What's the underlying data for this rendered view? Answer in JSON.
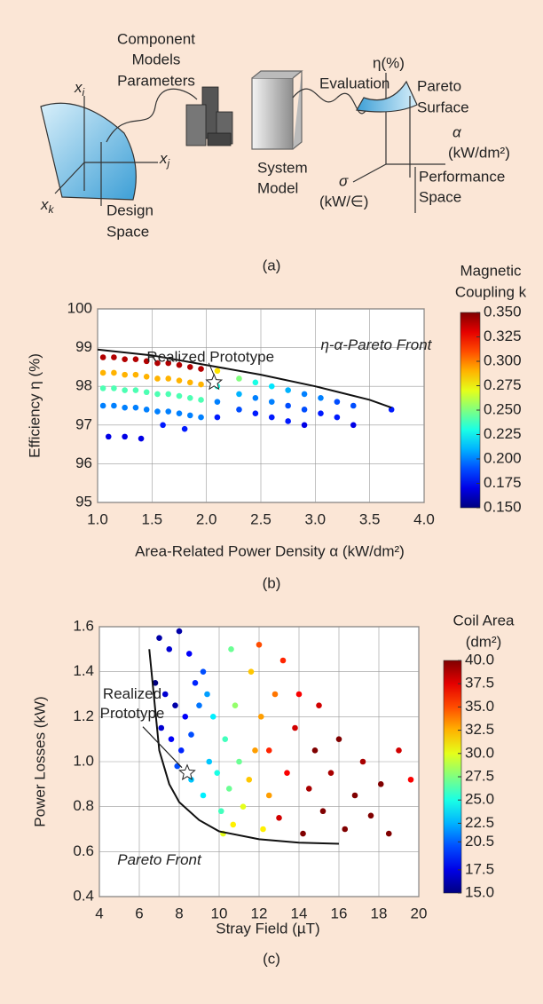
{
  "diagram": {
    "component_models": [
      "Component",
      "Models"
    ],
    "parameters": "Parameters",
    "evaluation": "Evaluation",
    "system_model": [
      "System",
      "Model"
    ],
    "design_space": [
      "Design",
      "Space"
    ],
    "axis_xi": {
      "var": "x",
      "sub": "i"
    },
    "axis_xj": {
      "var": "x",
      "sub": "j"
    },
    "axis_xk": {
      "var": "x",
      "sub": "k"
    },
    "eta": "η(%)",
    "pareto_surface": [
      "Pareto",
      "Surface"
    ],
    "alpha": [
      "α",
      "(kW/dm²)"
    ],
    "sigma": [
      "σ",
      "(kW/∈)"
    ],
    "performance_space": [
      "Performance",
      "Space"
    ],
    "panel": "(a)"
  },
  "chart_data": [
    {
      "type": "scatter",
      "panel": "(b)",
      "xlabel": "Area-Related Power Density α (kW/dm²)",
      "ylabel": "Efficiency η (%)",
      "xlim": [
        1,
        4
      ],
      "ylim": [
        95,
        100
      ],
      "xticks": [
        {
          "value": 1,
          "label": "1.0"
        },
        1.5,
        {
          "value": 2,
          "label": "2.0"
        },
        2.5,
        {
          "value": 3,
          "label": "3.0"
        },
        3.5,
        {
          "value": 4,
          "label": "4.0"
        }
      ],
      "yticks": [
        95,
        96,
        97,
        98,
        99,
        100
      ],
      "grid": true,
      "colorbar": {
        "label": [
          "Magnetic",
          "Coupling k"
        ],
        "lim": [
          0.15,
          0.35
        ],
        "colormap": "jet",
        "ticks": [
          {
            "value": 0.35,
            "label": "0.350"
          },
          0.325,
          {
            "value": 0.3,
            "label": "0.300"
          },
          0.275,
          {
            "value": 0.25,
            "label": "0.250"
          },
          0.225,
          {
            "value": 0.2,
            "label": "0.200"
          },
          0.175,
          {
            "value": 0.15,
            "label": "0.150"
          }
        ]
      },
      "series": [
        {
          "x": [
            1.05,
            1.05,
            1.05,
            1.05,
            1.15,
            1.15,
            1.15,
            1.15,
            1.25,
            1.25,
            1.25,
            1.25,
            1.35,
            1.35,
            1.35,
            1.35,
            1.45,
            1.45,
            1.45,
            1.45,
            1.55,
            1.55,
            1.55,
            1.55,
            1.65,
            1.65,
            1.65,
            1.65,
            1.75,
            1.75,
            1.75,
            1.75,
            1.85,
            1.85,
            1.85,
            1.85,
            1.95,
            1.95,
            1.95,
            1.95,
            1.1,
            1.25,
            1.4,
            1.6,
            1.8,
            2.1,
            2.1,
            2.1,
            2.1,
            2.3,
            2.3,
            2.3,
            2.45,
            2.45,
            2.45,
            2.6,
            2.6,
            2.6,
            2.75,
            2.75,
            2.75,
            2.9,
            2.9,
            2.9,
            3.05,
            3.05,
            3.2,
            3.2,
            3.35,
            3.35,
            3.7
          ],
          "values": [
            98.75,
            98.35,
            97.95,
            97.5,
            98.75,
            98.35,
            97.95,
            97.5,
            98.7,
            98.3,
            97.9,
            97.45,
            98.7,
            98.3,
            97.9,
            97.45,
            98.65,
            98.25,
            97.85,
            97.4,
            98.6,
            98.2,
            97.8,
            97.35,
            98.6,
            98.2,
            97.8,
            97.35,
            98.55,
            98.15,
            97.75,
            97.3,
            98.5,
            98.1,
            97.7,
            97.25,
            98.45,
            98.05,
            97.65,
            97.2,
            96.7,
            96.7,
            96.65,
            97.0,
            96.9,
            98.4,
            98.0,
            97.6,
            97.2,
            98.2,
            97.8,
            97.4,
            98.1,
            97.7,
            97.3,
            98.0,
            97.6,
            97.2,
            97.9,
            97.5,
            97.1,
            97.8,
            97.4,
            97.0,
            97.7,
            97.3,
            97.6,
            97.2,
            97.5,
            97.0,
            97.4
          ],
          "c": [
            0.34,
            0.29,
            0.24,
            0.2,
            0.34,
            0.29,
            0.24,
            0.2,
            0.34,
            0.29,
            0.24,
            0.2,
            0.34,
            0.29,
            0.24,
            0.2,
            0.34,
            0.29,
            0.24,
            0.2,
            0.34,
            0.29,
            0.24,
            0.2,
            0.34,
            0.29,
            0.24,
            0.2,
            0.34,
            0.29,
            0.24,
            0.2,
            0.34,
            0.29,
            0.24,
            0.2,
            0.34,
            0.29,
            0.24,
            0.2,
            0.17,
            0.17,
            0.17,
            0.18,
            0.18,
            0.28,
            0.23,
            0.2,
            0.18,
            0.25,
            0.21,
            0.19,
            0.23,
            0.2,
            0.18,
            0.22,
            0.2,
            0.18,
            0.21,
            0.19,
            0.18,
            0.2,
            0.19,
            0.17,
            0.2,
            0.18,
            0.19,
            0.18,
            0.19,
            0.17,
            0.18
          ]
        }
      ],
      "pareto_front": {
        "label": "η-α-Pareto Front",
        "x": [
          1,
          1.5,
          2,
          2.5,
          3,
          3.5,
          3.7
        ],
        "values": [
          98.95,
          98.8,
          98.55,
          98.3,
          98.0,
          97.65,
          97.45
        ]
      },
      "prototype": {
        "label": [
          "Realized Prototype"
        ],
        "x": 2.07,
        "y": 98.1
      }
    },
    {
      "type": "scatter",
      "panel": "(c)",
      "xlabel": "Stray Field (µT)",
      "ylabel": "Power Losses (kW)",
      "xlim": [
        4,
        20
      ],
      "ylim": [
        0.4,
        1.6
      ],
      "xticks": [
        4,
        6,
        8,
        10,
        12,
        14,
        16,
        18,
        20
      ],
      "yticks": [
        0.4,
        0.6,
        0.8,
        {
          "value": 1,
          "label": "1.0"
        },
        1.2,
        1.4,
        1.6
      ],
      "grid": true,
      "colorbar": {
        "label": [
          "Coil Area",
          "(dm²)"
        ],
        "lim": [
          15,
          40
        ],
        "colormap": "jet",
        "ticks": [
          {
            "value": 40,
            "label": "40.0"
          },
          37.5,
          {
            "value": 35,
            "label": "35.0"
          },
          32.5,
          {
            "value": 30,
            "label": "30.0"
          },
          27.5,
          {
            "value": 25,
            "label": "25.0"
          },
          22.5,
          20.5,
          17.5,
          {
            "value": 15,
            "label": "15.0"
          }
        ]
      },
      "series": [
        {
          "x": [
            7.0,
            7.5,
            8.0,
            8.5,
            6.8,
            7.3,
            7.8,
            8.3,
            8.8,
            7.1,
            7.6,
            8.1,
            8.6,
            7.9,
            9.2,
            9.0,
            8.6,
            9.2,
            9.5,
            9.9,
            10.3,
            9.7,
            10.5,
            10.1,
            9.4,
            10.8,
            11.0,
            10.6,
            10.2,
            10.7,
            11.2,
            11.5,
            11.8,
            12.2,
            12.5,
            11.6,
            12.8,
            12.1,
            12.5,
            13.0,
            13.4,
            13.8,
            14.2,
            14.5,
            14.8,
            15.2,
            15.6,
            16.0,
            16.3,
            16.8,
            17.2,
            17.6,
            18.1,
            18.5,
            19.0,
            19.6,
            13.2,
            14.0,
            15.0,
            12.0
          ],
          "values": [
            1.55,
            1.5,
            1.58,
            1.48,
            1.35,
            1.3,
            1.25,
            1.2,
            1.35,
            1.15,
            1.1,
            1.05,
            1.12,
            0.98,
            1.4,
            1.25,
            0.92,
            0.85,
            1.0,
            0.95,
            1.1,
            1.2,
            0.88,
            0.78,
            1.3,
            1.25,
            1.0,
            1.5,
            0.68,
            0.72,
            0.8,
            0.92,
            1.05,
            0.7,
            0.85,
            1.4,
            1.3,
            1.2,
            1.05,
            0.75,
            0.95,
            1.15,
            0.68,
            0.88,
            1.05,
            0.78,
            0.95,
            1.1,
            0.7,
            0.85,
            1.0,
            0.76,
            0.9,
            0.68,
            1.05,
            0.92,
            1.45,
            1.3,
            1.25,
            1.52
          ],
          "c": [
            16,
            17,
            16,
            18,
            15,
            17,
            16,
            18,
            19,
            17,
            18,
            19,
            20,
            20,
            20,
            21,
            23,
            24,
            23,
            25,
            26,
            24,
            27,
            26,
            22,
            28,
            27,
            27,
            30,
            31,
            30,
            32,
            33,
            31,
            33,
            32,
            34,
            33,
            36,
            38,
            37,
            38,
            40,
            39,
            40,
            40,
            39,
            40,
            40,
            40,
            39,
            40,
            40,
            40,
            38,
            37,
            36,
            37,
            38,
            35
          ]
        }
      ],
      "pareto_front": {
        "label": "Pareto Front",
        "x": [
          6.5,
          7,
          7.5,
          8,
          9,
          10,
          12,
          14,
          16
        ],
        "values": [
          1.5,
          1.05,
          0.9,
          0.82,
          0.74,
          0.69,
          0.655,
          0.64,
          0.635
        ]
      },
      "prototype": {
        "label": [
          "Realized",
          "Prototype"
        ],
        "x": 8.4,
        "y": 0.95
      }
    }
  ]
}
